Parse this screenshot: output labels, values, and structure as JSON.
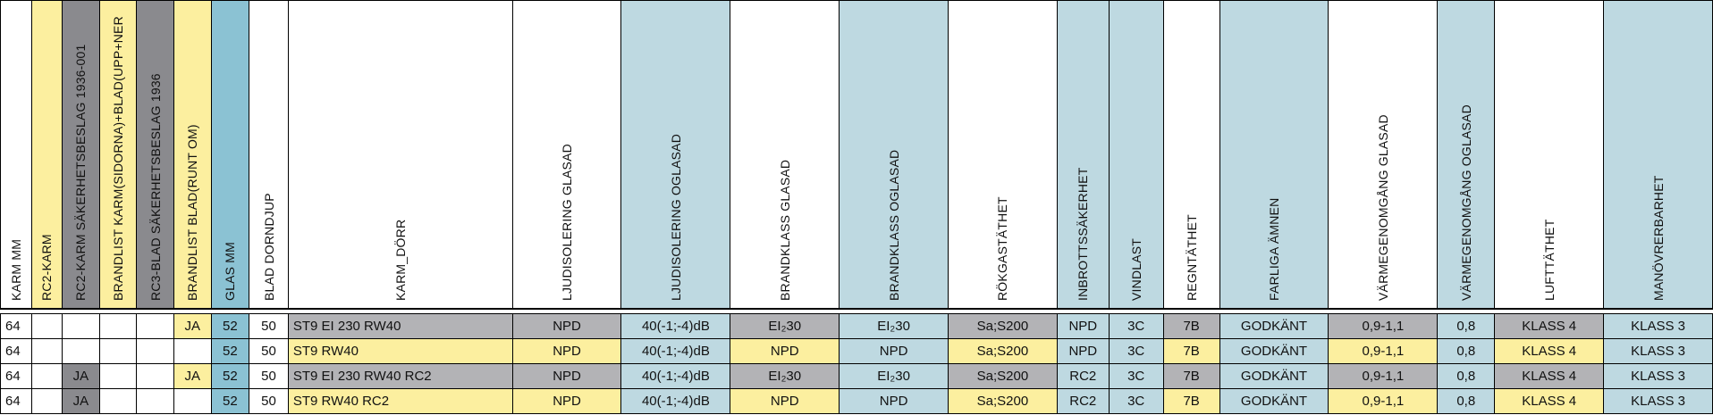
{
  "colors": {
    "yellow": "#fcef9f",
    "grey_dark": "#8a8a8e",
    "blue_light": "#bed9e1",
    "blue_mid": "#8bc2d3",
    "grey_cell": "#b3b3b6",
    "white": "#ffffff"
  },
  "columns": [
    {
      "label": "KARM MM",
      "bg": "white"
    },
    {
      "label": "RC2-KARM",
      "bg": "yellow"
    },
    {
      "label": "RC2-KARM SÄKERHETSBESLAG 1936-001",
      "bg": "grey_dark"
    },
    {
      "label": "BRANDLIST KARM(SIDORNA)+BLAD(UPP+NER",
      "bg": "yellow"
    },
    {
      "label": "RC3-BLAD SÄKERHETSBESLAG 1936",
      "bg": "grey_dark"
    },
    {
      "label": "BRANDLIST BLAD(RUNT OM)",
      "bg": "yellow"
    },
    {
      "label": "GLAS MM",
      "bg": "blue_mid"
    },
    {
      "label": "BLAD DORNDJUP",
      "bg": "white"
    },
    {
      "label": "KARM_DÖRR",
      "bg": "white"
    },
    {
      "label": "LJUDISOLERING GLASAD",
      "bg": "white"
    },
    {
      "label": "LJUDISOLERING OGLASAD",
      "bg": "blue_light"
    },
    {
      "label": "BRANDKLASS GLASAD",
      "bg": "white"
    },
    {
      "label": "BRANDKLASS OGLASAD",
      "bg": "blue_light"
    },
    {
      "label": "RÖKGASTÄTHET",
      "bg": "white"
    },
    {
      "label": "INBROTTSSÄKERHET",
      "bg": "blue_light"
    },
    {
      "label": "VINDLAST",
      "bg": "blue_light"
    },
    {
      "label": "REGNTÄTHET",
      "bg": "white"
    },
    {
      "label": "FARLIGA ÄMNEN",
      "bg": "blue_light"
    },
    {
      "label": "VÄRMEGENOMGÅNG GLASAD",
      "bg": "white"
    },
    {
      "label": "VÄRMEGENOMGÅNG OGLASAD",
      "bg": "blue_light"
    },
    {
      "label": "LUFTTÄTHET",
      "bg": "white"
    },
    {
      "label": "MANÖVRERBARHET",
      "bg": "blue_light"
    }
  ],
  "rows": [
    {
      "values": [
        "64",
        "",
        "",
        "",
        "",
        "JA",
        "52",
        "50",
        "ST9 EI 230 RW40",
        "NPD",
        "40(-1;-4)dB",
        "EI₂30",
        "EI₂30",
        "Sa;S200",
        "NPD",
        "3C",
        "7B",
        "GODKÄNT",
        "0,9-1,1",
        "0,8",
        "KLASS 4",
        "KLASS 3"
      ],
      "bgs": [
        "white",
        "white",
        "white",
        "white",
        "white",
        "yellow",
        "blue_mid",
        "white",
        "grey_cell",
        "grey_cell",
        "blue_light",
        "grey_cell",
        "blue_light",
        "grey_cell",
        "blue_light",
        "blue_light",
        "grey_cell",
        "blue_light",
        "grey_cell",
        "blue_light",
        "grey_cell",
        "blue_light"
      ]
    },
    {
      "values": [
        "64",
        "",
        "",
        "",
        "",
        "",
        "52",
        "50",
        "ST9 RW40",
        "NPD",
        "40(-1;-4)dB",
        "NPD",
        "NPD",
        "Sa;S200",
        "NPD",
        "3C",
        "7B",
        "GODKÄNT",
        "0,9-1,1",
        "0,8",
        "KLASS 4",
        "KLASS 3"
      ],
      "bgs": [
        "white",
        "white",
        "white",
        "white",
        "white",
        "white",
        "blue_mid",
        "white",
        "yellow",
        "yellow",
        "blue_light",
        "yellow",
        "blue_light",
        "yellow",
        "blue_light",
        "blue_light",
        "yellow",
        "blue_light",
        "yellow",
        "blue_light",
        "yellow",
        "blue_light"
      ]
    },
    {
      "values": [
        "64",
        "",
        "JA",
        "",
        "",
        "JA",
        "52",
        "50",
        "ST9 EI 230 RW40 RC2",
        "NPD",
        "40(-1;-4)dB",
        "EI₂30",
        "EI₂30",
        "Sa;S200",
        "RC2",
        "3C",
        "7B",
        "GODKÄNT",
        "0,9-1,1",
        "0,8",
        "KLASS 4",
        "KLASS 3"
      ],
      "bgs": [
        "white",
        "white",
        "grey_dark",
        "white",
        "white",
        "yellow",
        "blue_mid",
        "white",
        "grey_cell",
        "grey_cell",
        "blue_light",
        "grey_cell",
        "blue_light",
        "grey_cell",
        "blue_light",
        "blue_light",
        "grey_cell",
        "blue_light",
        "grey_cell",
        "blue_light",
        "grey_cell",
        "blue_light"
      ]
    },
    {
      "values": [
        "64",
        "",
        "JA",
        "",
        "",
        "",
        "52",
        "50",
        "ST9 RW40 RC2",
        "NPD",
        "40(-1;-4)dB",
        "NPD",
        "NPD",
        "Sa;S200",
        "RC2",
        "3C",
        "7B",
        "GODKÄNT",
        "0,9-1,1",
        "0,8",
        "KLASS 4",
        "KLASS 3"
      ],
      "bgs": [
        "white",
        "white",
        "grey_dark",
        "white",
        "white",
        "white",
        "blue_mid",
        "white",
        "yellow",
        "yellow",
        "blue_light",
        "yellow",
        "blue_light",
        "yellow",
        "blue_light",
        "blue_light",
        "yellow",
        "blue_light",
        "yellow",
        "blue_light",
        "yellow",
        "blue_light"
      ]
    }
  ]
}
